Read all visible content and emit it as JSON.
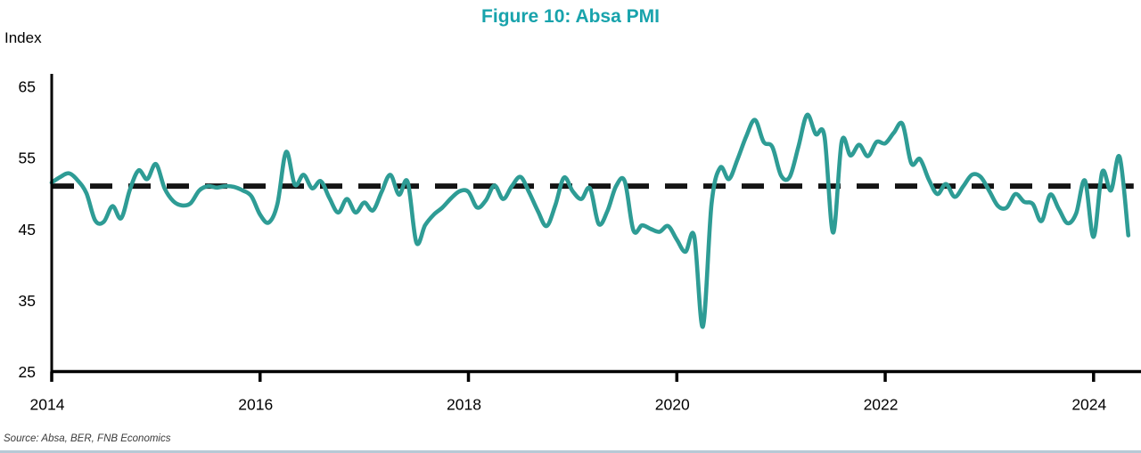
{
  "page": {
    "title": "Figure 10: Absa PMI",
    "y_axis_title": "Index",
    "source_note": "Source: Absa, BER, FNB Economics"
  },
  "colors": {
    "title_teal": "#18a3ac",
    "series_teal": "#2e9c95",
    "reference_black": "#141414",
    "axis_black": "#000000",
    "bottom_rule_blue": "#b7c9d6"
  },
  "chart_data": {
    "type": "line",
    "title": "Figure 10: Absa PMI",
    "xlabel": "",
    "ylabel": "Index",
    "ylim": [
      25,
      65
    ],
    "yticks": [
      65,
      55,
      45,
      35,
      25
    ],
    "xticks": [
      2014,
      2016,
      2018,
      2020,
      2022,
      2024
    ],
    "grid": false,
    "legend_position": "none",
    "reference_line": {
      "value": 51,
      "style": "dashed",
      "color": "#141414"
    },
    "series": [
      {
        "name": "Absa PMI",
        "frequency": "monthly",
        "start": "2014-01",
        "end": "2024-05",
        "color": "#2e9c95",
        "values": [
          51.5,
          52.3,
          52.8,
          51.8,
          50.0,
          46.2,
          46.0,
          48.2,
          46.5,
          50.5,
          53.2,
          52.0,
          54.1,
          50.7,
          48.9,
          48.3,
          48.6,
          50.4,
          51.0,
          50.8,
          51.0,
          50.9,
          50.4,
          49.6,
          47.0,
          45.9,
          48.5,
          55.8,
          51.2,
          52.6,
          50.7,
          51.7,
          49.3,
          47.3,
          49.2,
          47.3,
          48.7,
          47.6,
          50.2,
          52.6,
          49.8,
          51.6,
          43.1,
          45.5,
          47.0,
          48.0,
          49.3,
          50.3,
          50.2,
          48.0,
          49.0,
          51.1,
          49.2,
          51.0,
          52.3,
          50.1,
          47.5,
          45.4,
          48.3,
          52.2,
          50.3,
          49.2,
          50.7,
          45.7,
          47.5,
          51.0,
          51.7,
          44.8,
          45.5,
          45.0,
          44.6,
          45.4,
          43.5,
          41.8,
          44.0,
          31.3,
          48.5,
          53.6,
          52.0,
          54.8,
          58.0,
          60.3,
          57.2,
          56.5,
          52.5,
          52.3,
          56.5,
          61.0,
          58.3,
          58.0,
          44.5,
          57.3,
          55.3,
          56.8,
          55.2,
          57.2,
          57.0,
          58.5,
          59.7,
          54.2,
          54.8,
          52.0,
          49.9,
          51.3,
          49.5,
          51.0,
          52.6,
          52.3,
          50.3,
          48.2,
          48.0,
          49.9,
          48.8,
          48.5,
          46.1,
          49.8,
          47.8,
          45.8,
          47.2,
          51.8,
          43.9,
          53.0,
          50.4,
          55.1,
          44.1
        ]
      }
    ]
  }
}
